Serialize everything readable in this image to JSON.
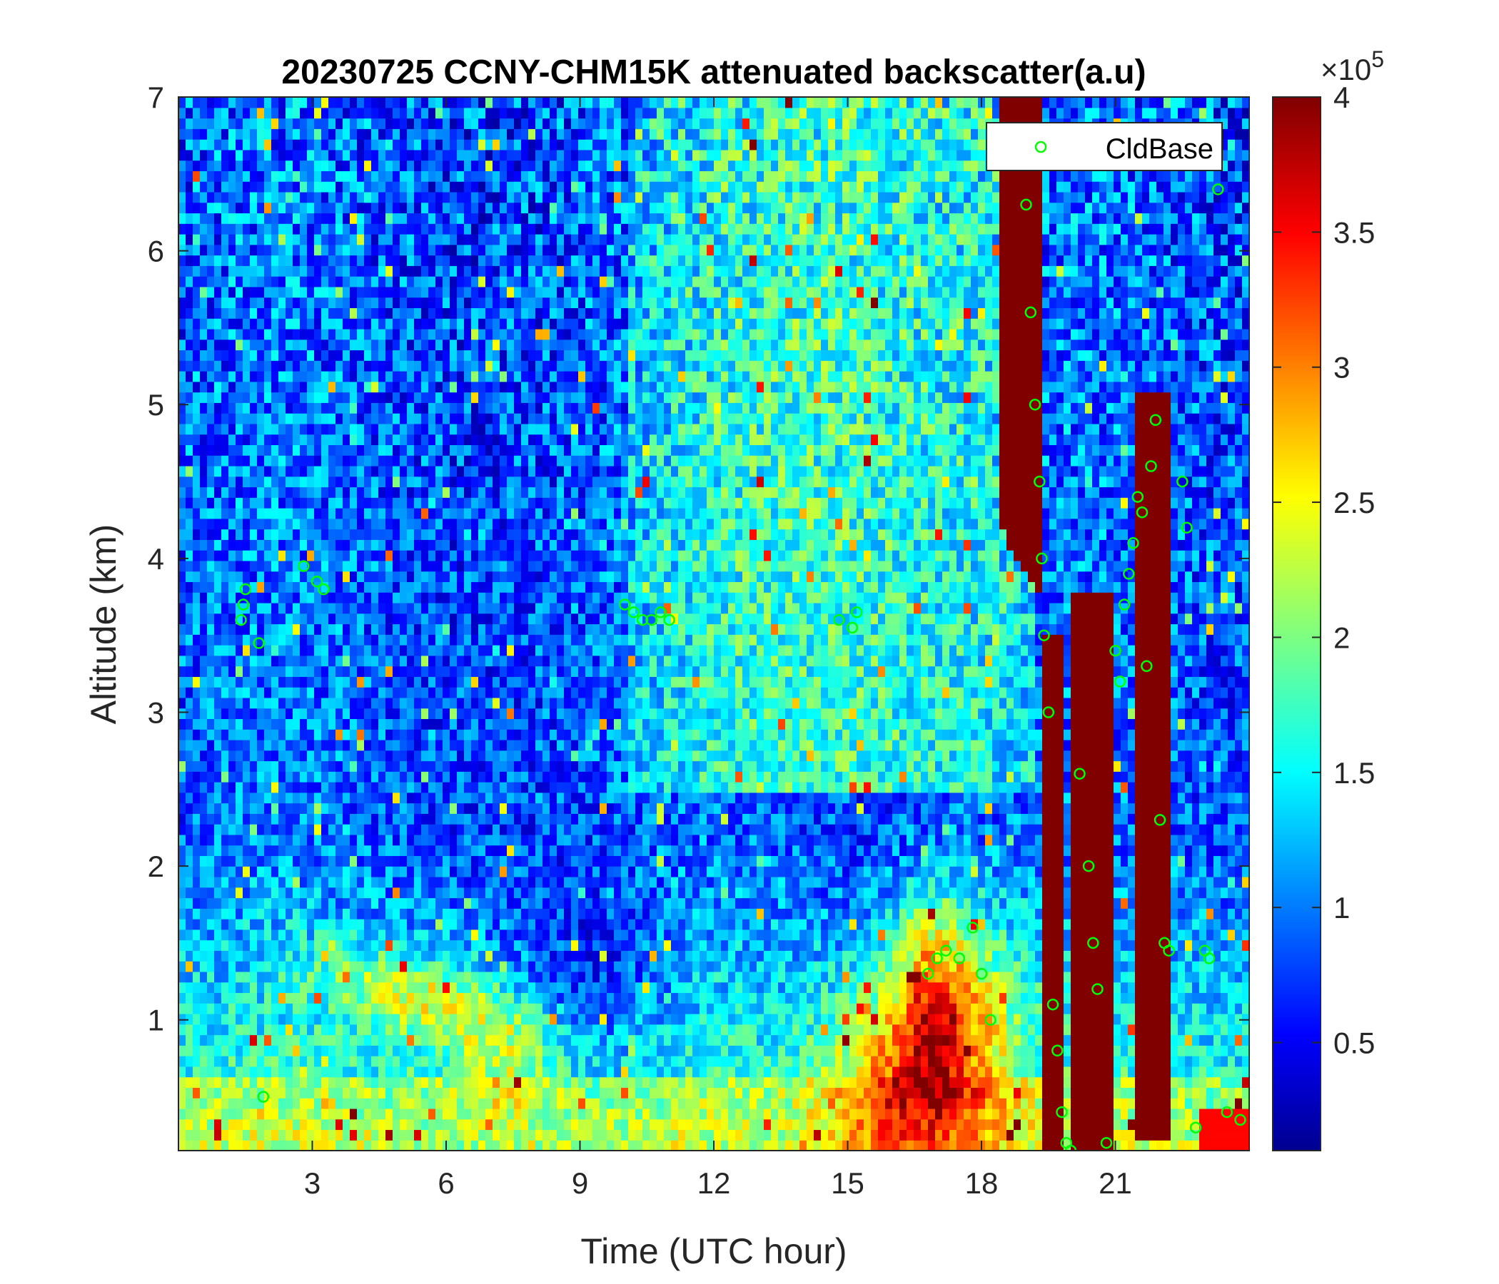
{
  "chart_data": {
    "type": "heatmap",
    "title": "20230725 CCNY-CHM15K attenuated backscatter(a.u)",
    "xlabel": "Time (UTC hour)",
    "ylabel": "Altitude (km)",
    "xlim": [
      0,
      24
    ],
    "ylim": [
      0.15,
      7
    ],
    "x_ticks": [
      3,
      6,
      9,
      12,
      15,
      18,
      21
    ],
    "y_ticks": [
      1,
      2,
      3,
      4,
      5,
      6,
      7
    ],
    "colorbar": {
      "colormap": "jet",
      "clim": [
        0.1,
        4
      ],
      "ticks": [
        0.5,
        1,
        1.5,
        2,
        2.5,
        3,
        3.5,
        4
      ],
      "tick_labels": [
        "0.5",
        "1",
        "1.5",
        "2",
        "2.5",
        "3",
        "3.5",
        "4"
      ],
      "exponent_base": "×10",
      "exponent_power": "5"
    },
    "legend": {
      "position": "top-right",
      "label": "CldBase",
      "marker": "circle",
      "color": "#00ff00"
    },
    "series": [
      {
        "name": "CldBase",
        "marker": "circle",
        "color": "#00ff00",
        "x": [
          1.4,
          1.45,
          1.5,
          1.8,
          1.9,
          2.8,
          3.1,
          3.25,
          10.0,
          10.2,
          10.4,
          10.6,
          10.8,
          11.0,
          14.8,
          15.1,
          15.2,
          16.8,
          17.0,
          17.2,
          17.5,
          17.8,
          18.0,
          18.2,
          19.0,
          19.1,
          19.2,
          19.3,
          19.35,
          19.4,
          19.5,
          19.6,
          19.7,
          19.8,
          19.9,
          20.0,
          20.2,
          20.4,
          20.5,
          20.6,
          20.8,
          21.0,
          21.1,
          21.2,
          21.3,
          21.4,
          21.5,
          21.6,
          21.7,
          21.8,
          21.9,
          22.0,
          22.1,
          22.2,
          22.5,
          22.6,
          22.8,
          23.0,
          23.1,
          23.3,
          23.5,
          23.8
        ],
        "y": [
          3.6,
          3.7,
          3.8,
          3.45,
          0.5,
          3.95,
          3.85,
          3.8,
          3.7,
          3.65,
          3.6,
          3.6,
          3.65,
          3.6,
          3.6,
          3.55,
          3.65,
          1.3,
          1.4,
          1.45,
          1.4,
          1.6,
          1.3,
          1.0,
          6.3,
          5.6,
          5.0,
          4.5,
          4.0,
          3.5,
          3.0,
          1.1,
          0.8,
          0.4,
          0.2,
          0.15,
          2.6,
          2.0,
          1.5,
          1.2,
          0.2,
          3.4,
          3.2,
          3.7,
          3.9,
          4.1,
          4.4,
          4.3,
          3.3,
          4.6,
          4.9,
          2.3,
          1.5,
          1.45,
          4.5,
          4.2,
          0.3,
          1.45,
          1.4,
          6.4,
          0.4,
          0.35
        ]
      }
    ]
  }
}
